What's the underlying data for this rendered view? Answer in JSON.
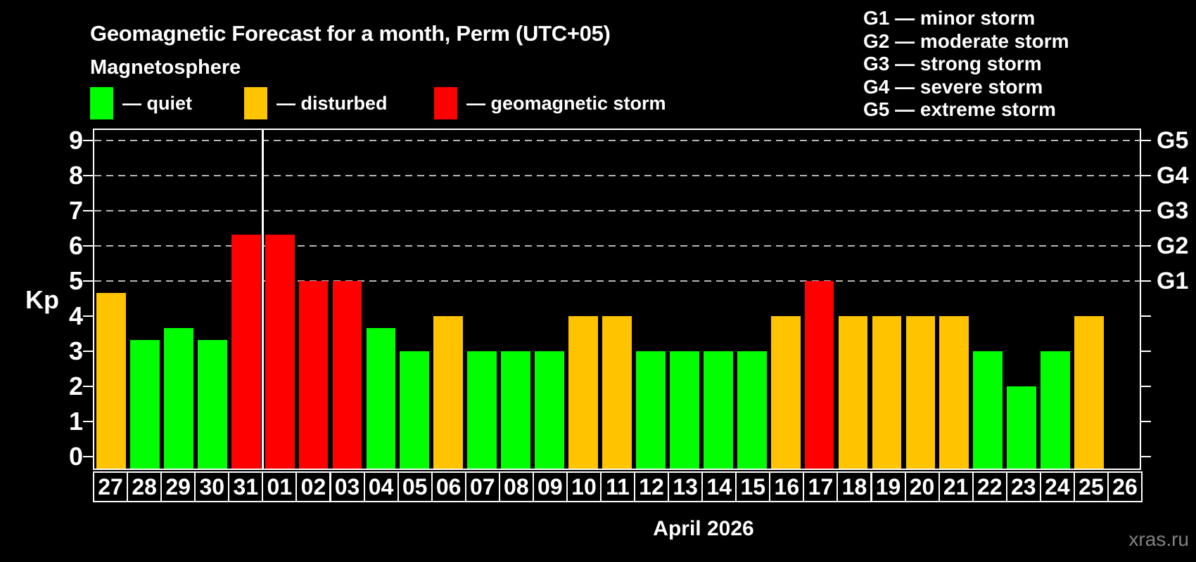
{
  "page": {
    "title": "Geomagnetic Forecast for a month, Perm (UTC+05)",
    "subtitle": "Magnetosphere",
    "month_label": "April 2026",
    "watermark": "xras.ru"
  },
  "legend": {
    "items": [
      {
        "key": "quiet",
        "label": "— quiet",
        "color": "#00ff00"
      },
      {
        "key": "disturbed",
        "label": "— disturbed",
        "color": "#ffc300"
      },
      {
        "key": "storm",
        "label": "— geomagnetic storm",
        "color": "#ff0000"
      }
    ]
  },
  "g_legend": {
    "lines": [
      "G1 — minor storm",
      "G2 — moderate storm",
      "G3 — strong storm",
      "G4 — severe storm",
      "G5 — extreme storm"
    ]
  },
  "chart_data": {
    "type": "bar",
    "title": "Geomagnetic Forecast for a month, Perm (UTC+05)",
    "xlabel": "April 2026",
    "ylabel": "Kp",
    "ylim": [
      0,
      9
    ],
    "yticks": [
      0,
      1,
      2,
      3,
      4,
      5,
      6,
      7,
      8,
      9
    ],
    "gridline_kp_levels": [
      5,
      6,
      7,
      8,
      9
    ],
    "grid": "dashed horizontal lines at Kp 5-9 only",
    "legend_position": "top",
    "right_axis": {
      "labels": [
        "G1",
        "G2",
        "G3",
        "G4",
        "G5"
      ],
      "kp_levels": [
        5,
        6,
        7,
        8,
        9
      ]
    },
    "categories": [
      "27",
      "28",
      "29",
      "30",
      "31",
      "01",
      "02",
      "03",
      "04",
      "05",
      "06",
      "07",
      "08",
      "09",
      "10",
      "11",
      "12",
      "13",
      "14",
      "15",
      "16",
      "17",
      "18",
      "19",
      "20",
      "21",
      "22",
      "23",
      "24",
      "25",
      "26"
    ],
    "values": [
      4.67,
      3.33,
      3.67,
      3.33,
      6.33,
      6.33,
      5,
      5,
      3.67,
      3,
      4,
      3,
      3,
      3,
      4,
      4,
      3,
      3,
      3,
      3,
      4,
      5,
      4,
      4,
      4,
      4,
      3,
      2,
      3,
      4,
      null
    ],
    "status": [
      "disturbed",
      "quiet",
      "quiet",
      "quiet",
      "storm",
      "storm",
      "storm",
      "storm",
      "quiet",
      "quiet",
      "disturbed",
      "quiet",
      "quiet",
      "quiet",
      "disturbed",
      "disturbed",
      "quiet",
      "quiet",
      "quiet",
      "quiet",
      "disturbed",
      "storm",
      "disturbed",
      "disturbed",
      "disturbed",
      "disturbed",
      "quiet",
      "quiet",
      "quiet",
      "disturbed",
      null
    ],
    "colors": {
      "quiet": "#00ff00",
      "disturbed": "#ffc300",
      "storm": "#ff0000"
    },
    "month_separator_after_index": 4
  }
}
